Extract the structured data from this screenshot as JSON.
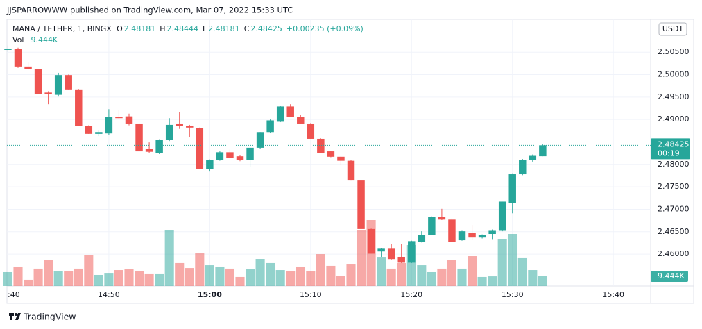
{
  "header": "JJSPARROWWW published on TradingView.com, Mar 07, 2022 15:33 UTC",
  "footer": "TradingView",
  "chart_data": {
    "type": "candlestick",
    "title": "MANA / TETHER, 1, BINGX",
    "ohlc_labels": [
      "O",
      "H",
      "L",
      "C"
    ],
    "change": "+0.00235 (+0.09%)",
    "currency": "USDT",
    "countdown": "00:19",
    "up_color": "#26a69a",
    "down_color": "#ef5350",
    "open": [
      2.5055,
      2.5058,
      2.5018,
      2.5012,
      2.496,
      2.4955,
      2.4999,
      2.4967,
      2.4886,
      2.4868,
      2.4869,
      2.4906,
      2.4907,
      2.4891,
      2.4834,
      2.4826,
      2.4854,
      2.4891,
      2.4886,
      2.4881,
      2.479,
      2.4809,
      2.4827,
      2.4818,
      2.4809,
      2.4837,
      2.4872,
      2.4895,
      2.4929,
      2.4906,
      2.4891,
      2.4857,
      2.4829,
      2.4817,
      2.4808,
      2.4764,
      2.4656,
      2.4606,
      2.4612,
      2.4594,
      2.4581,
      2.4628,
      2.4643,
      2.4683,
      2.4677,
      2.4631,
      2.4648,
      2.4637,
      2.4645,
      2.4652,
      2.4714,
      2.4778,
      2.4809,
      2.48181
    ],
    "high": [
      2.5065,
      2.506,
      2.5027,
      2.5012,
      2.4963,
      2.5004,
      2.5,
      2.4968,
      2.4887,
      2.4875,
      2.4923,
      2.4921,
      2.4913,
      2.4892,
      2.4849,
      2.4856,
      2.4903,
      2.4916,
      2.4888,
      2.4882,
      2.4811,
      2.4829,
      2.4833,
      2.482,
      2.4838,
      2.4872,
      2.49,
      2.493,
      2.4934,
      2.4911,
      2.4892,
      2.4858,
      2.483,
      2.4818,
      2.4809,
      2.4765,
      2.4657,
      2.4613,
      2.4622,
      2.4622,
      2.463,
      2.4651,
      2.4684,
      2.4701,
      2.468,
      2.4652,
      2.4665,
      2.4644,
      2.4655,
      2.4717,
      2.478,
      2.4812,
      2.4822,
      2.48444
    ],
    "low": [
      2.505,
      2.5015,
      2.5011,
      2.4957,
      2.4934,
      2.4951,
      2.4967,
      2.4886,
      2.4868,
      2.4863,
      2.4866,
      2.49,
      2.4887,
      2.4829,
      2.4825,
      2.4823,
      2.4852,
      2.4879,
      2.486,
      2.479,
      2.4784,
      2.4808,
      2.4813,
      2.4807,
      2.4795,
      2.4835,
      2.487,
      2.4894,
      2.4905,
      2.489,
      2.4857,
      2.4826,
      2.4816,
      2.4799,
      2.4764,
      2.4656,
      2.4601,
      2.4594,
      2.4588,
      2.458,
      2.458,
      2.4626,
      2.4642,
      2.4676,
      2.4628,
      2.463,
      2.4631,
      2.4635,
      2.4632,
      2.4651,
      2.4691,
      2.4776,
      2.4806,
      2.48181
    ],
    "close": [
      2.5058,
      2.5018,
      2.5012,
      2.4957,
      2.4957,
      2.4999,
      2.4967,
      2.4886,
      2.4868,
      2.4872,
      2.4906,
      2.4903,
      2.4891,
      2.4829,
      2.4828,
      2.4854,
      2.4888,
      2.4886,
      2.4882,
      2.479,
      2.4809,
      2.4827,
      2.4815,
      2.4809,
      2.4837,
      2.4872,
      2.4898,
      2.4929,
      2.4906,
      2.4891,
      2.4857,
      2.4826,
      2.4817,
      2.4808,
      2.4764,
      2.4656,
      2.4601,
      2.4612,
      2.4589,
      2.4581,
      2.4629,
      2.4643,
      2.4683,
      2.4677,
      2.4628,
      2.4651,
      2.4637,
      2.4643,
      2.4652,
      2.4717,
      2.4778,
      2.481,
      2.4819,
      2.48425
    ],
    "volume": {
      "name": "Vol",
      "values": [
        13500,
        18900,
        6100,
        16900,
        25000,
        14800,
        14800,
        16900,
        29700,
        10800,
        12100,
        15500,
        16200,
        14800,
        11500,
        11500,
        54000,
        22300,
        17500,
        31700,
        20200,
        18900,
        16900,
        8800,
        16200,
        26300,
        22300,
        15500,
        14200,
        18900,
        14800,
        31000,
        19600,
        10100,
        20900,
        54000,
        64100,
        28300,
        16900,
        22300,
        39800,
        20200,
        13500,
        16900,
        25000,
        16900,
        29000,
        8800,
        9400,
        45200,
        50600,
        27700,
        15500,
        9444
      ],
      "value_labels": [
        null,
        null,
        null,
        null,
        null,
        null,
        null,
        null,
        null,
        null,
        null,
        null,
        null,
        null,
        null,
        null,
        null,
        null,
        null,
        null,
        null,
        null,
        null,
        null,
        null,
        null,
        null,
        null,
        null,
        null,
        null,
        null,
        null,
        null,
        null,
        null,
        null,
        null,
        null,
        null,
        null,
        null,
        null,
        null,
        null,
        null,
        null,
        null,
        null,
        null,
        null,
        null,
        null,
        "9.444K"
      ]
    },
    "ylim": [
      2.4529,
      2.5123
    ],
    "yticks": [
      {
        "value": 2.46,
        "label": "2.46000"
      },
      {
        "value": 2.465,
        "label": "2.46500"
      },
      {
        "value": 2.47,
        "label": "2.47000"
      },
      {
        "value": 2.475,
        "label": "2.47500"
      },
      {
        "value": 2.48,
        "label": "2.48000"
      },
      {
        "value": 2.49,
        "label": "2.49000"
      },
      {
        "value": 2.495,
        "label": "2.49500"
      },
      {
        "value": 2.5,
        "label": "2.50000"
      },
      {
        "value": 2.505,
        "label": "2.50500"
      }
    ],
    "xlim": [
      -0.1,
      63.7
    ],
    "xticks": [
      {
        "value": 0,
        "label": ":40"
      },
      {
        "value": 10,
        "label": "14:50"
      },
      {
        "value": 20,
        "label": "15:00"
      },
      {
        "value": 30,
        "label": "15:10"
      },
      {
        "value": 40,
        "label": "15:20"
      },
      {
        "value": 50,
        "label": "15:30"
      },
      {
        "value": 60,
        "label": "15:40"
      }
    ],
    "grid": true
  }
}
